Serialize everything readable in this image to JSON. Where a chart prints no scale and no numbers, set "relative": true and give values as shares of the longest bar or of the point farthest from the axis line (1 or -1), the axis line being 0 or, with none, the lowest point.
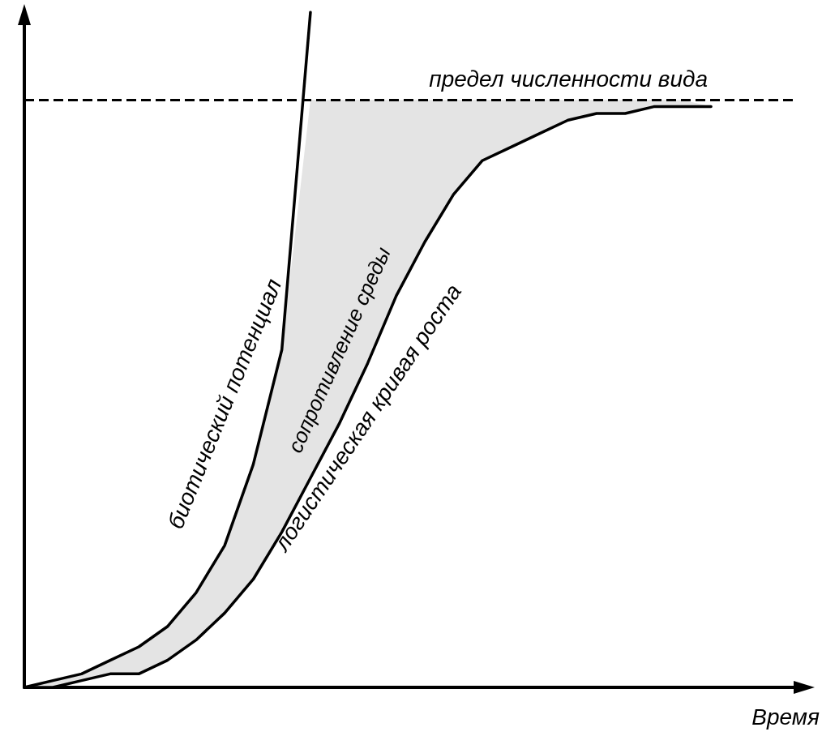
{
  "chart_data": {
    "type": "line",
    "relative": true,
    "xlabel": "Время",
    "categories": [
      null,
      null,
      null,
      null,
      null,
      null,
      null,
      null,
      null,
      null,
      null,
      null,
      null,
      null,
      null,
      null,
      null,
      null,
      null,
      null,
      null,
      null,
      null,
      null,
      null,
      null,
      null,
      null
    ],
    "series": [
      {
        "name": "биотический потенциал",
        "color": "#000000",
        "values": [
          0,
          0.01,
          0.02,
          0.04,
          0.06,
          0.09,
          0.14,
          0.21,
          0.33,
          0.5,
          1.0,
          null,
          null,
          null,
          null,
          null,
          null,
          null,
          null,
          null,
          null,
          null,
          null,
          null,
          null,
          null,
          null,
          null
        ]
      },
      {
        "name": "логистическая кривая роста",
        "color": "#000000",
        "values": [
          0,
          0,
          0.01,
          0.02,
          0.02,
          0.04,
          0.07,
          0.11,
          0.16,
          0.23,
          0.31,
          0.39,
          0.48,
          0.58,
          0.66,
          0.73,
          0.78,
          0.8,
          0.82,
          0.84,
          0.85,
          0.85,
          0.86,
          0.86,
          0.86,
          null,
          null,
          null
        ],
        "lower": [
          0,
          0,
          0.01,
          0.02,
          0.02,
          0.04,
          0.07,
          0.11,
          0.16,
          0.23,
          0.31,
          0.39,
          0.48,
          0.58,
          0.66,
          0.73,
          0.78,
          0.8,
          0.82,
          0.84,
          0.85,
          0.85,
          0.86,
          0.86,
          0.86,
          null,
          null,
          null
        ],
        "upper": [
          0,
          0.01,
          0.02,
          0.04,
          0.06,
          0.09,
          0.14,
          0.21,
          0.33,
          0.5,
          0.87,
          0.87,
          0.87,
          0.87,
          0.87,
          0.87,
          0.87,
          0.87,
          0.87,
          0.87,
          0.87,
          0.87,
          0.87,
          0.87,
          0.86,
          null,
          null,
          null
        ]
      }
    ],
    "ref_lines": [
      {
        "axis": "y",
        "value": 0.87,
        "label": "предел численности вида",
        "line_style": "dashed",
        "color": "#000000"
      }
    ],
    "annotations": [
      "сопротивление среды"
    ],
    "legend": false,
    "grid": false,
    "marker": "none",
    "line_style": "solid"
  }
}
